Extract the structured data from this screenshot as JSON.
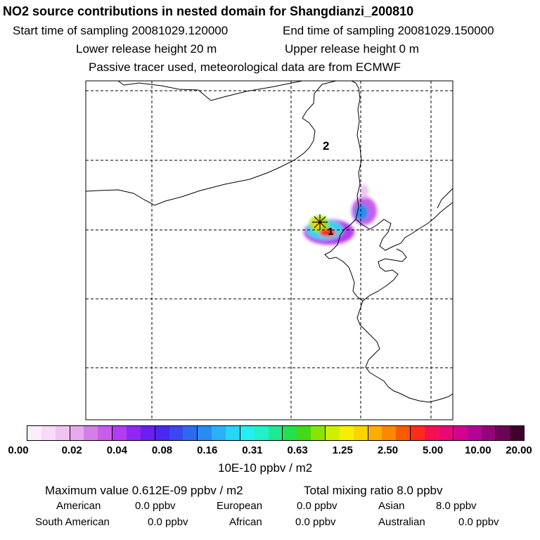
{
  "header": {
    "title": "NO2 source contributions in nested domain for Shangdianzi_200810",
    "start_label": "Start time of sampling 20081029.120000",
    "end_label": "End time of sampling 20081029.150000",
    "lower_label": "Lower release height   20 m",
    "upper_label": "Upper release height    0 m",
    "tracer_line": "Passive tracer used, meteorological data are from ECMWF"
  },
  "map": {
    "label_2": "2",
    "label_1": "1",
    "station_marker": "star-marker"
  },
  "colorbar": {
    "colors": [
      "#fbeefb",
      "#f6dcf6",
      "#f0c4f2",
      "#e6a8ee",
      "#d47ee8",
      "#c65ee8",
      "#b23cf0",
      "#9226f4",
      "#6a1ef2",
      "#4a28f0",
      "#3a48f0",
      "#2e6af0",
      "#2a8cf2",
      "#2ab0f4",
      "#26d6f2",
      "#24eef0",
      "#22f0c8",
      "#20e890",
      "#22e050",
      "#44d816",
      "#8ae400",
      "#cef000",
      "#f6f000",
      "#fcd400",
      "#fcae00",
      "#fc8800",
      "#fc5a00",
      "#fc2c1c",
      "#f41050",
      "#e80878",
      "#d00490",
      "#b40498",
      "#94047a",
      "#6e0258",
      "#40002c"
    ],
    "ticks": [
      "0.00",
      "0.02",
      "0.04",
      "0.08",
      "0.16",
      "0.31",
      "0.63",
      "1.25",
      "2.50",
      "5.00",
      "10.00",
      "20.00"
    ],
    "unit": "10E-10 ppbv / m2"
  },
  "footer": {
    "max_line": "Maximum value  0.612E-09 ppbv / m2",
    "total_line": "Total mixing ratio        8.0 ppbv",
    "american_name": "American",
    "american_val": "0.0 ppbv",
    "european_name": "European",
    "european_val": "0.0 ppbv",
    "asian_name": "Asian",
    "asian_val": "8.0 ppbv",
    "southam_name": "South American",
    "southam_val": "0.0 ppbv",
    "african_name": "African",
    "african_val": "0.0 ppbv",
    "australian_name": "Australian",
    "australian_val": "0.0 ppbv"
  }
}
